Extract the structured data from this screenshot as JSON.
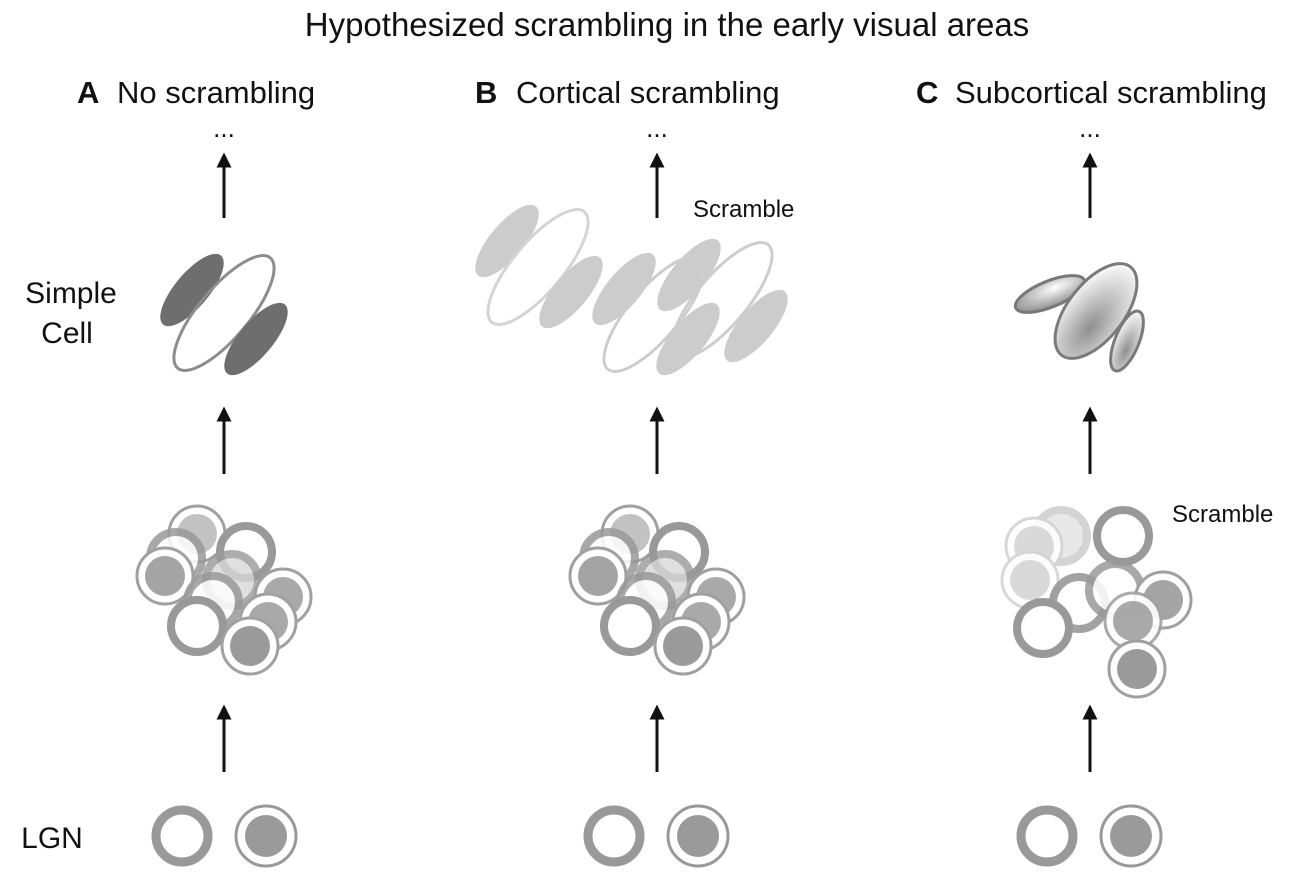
{
  "title": "Hypothesized scrambling in the early visual areas",
  "row_labels": {
    "simple_cell_line1": "Simple",
    "simple_cell_line2": "Cell",
    "lgn": "LGN"
  },
  "panels": [
    {
      "letter": "A",
      "title": "No scrambling",
      "continuation": "...",
      "scramble_note": ""
    },
    {
      "letter": "B",
      "title": "Cortical scrambling",
      "continuation": "...",
      "scramble_note": "Scramble"
    },
    {
      "letter": "C",
      "title": "Subcortical scrambling",
      "continuation": "...",
      "scramble_note": "Scramble"
    }
  ],
  "colors": {
    "dark_fill": "#6e6e6e",
    "mid_fill": "#9a9a9a",
    "light_fill": "#c7c7c7",
    "ring": "#8c8c8c",
    "faint_ring": "#cfcfcf",
    "arrow": "#111111"
  }
}
